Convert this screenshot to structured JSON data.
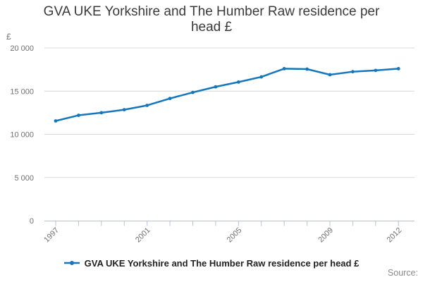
{
  "header": {
    "title": "GVA UKE Yorkshire and The Humber Raw residence per head £"
  },
  "y_axis": {
    "unit": "£",
    "tick_labels": [
      "0",
      "5 000",
      "10 000",
      "15 000",
      "20 000"
    ]
  },
  "x_axis": {
    "tick_labels": [
      "1997",
      "2001",
      "2005",
      "2009",
      "2012"
    ]
  },
  "legend": {
    "label": "GVA UKE Yorkshire and The Humber Raw residence per head £"
  },
  "footer": {
    "source": "Source:"
  },
  "colors": {
    "line": "#1477bd",
    "grid": "#d9d9d9",
    "axis": "#b5c2d8",
    "tick_label": "#707070",
    "title": "#3a3a3a",
    "legend_text": "#222222",
    "source_text": "#8c8c8c"
  },
  "chart_data": {
    "type": "line",
    "title": "GVA UKE Yorkshire and The Humber Raw residence per head £",
    "xlabel": "",
    "ylabel": "£",
    "x": [
      1997,
      1998,
      1999,
      2000,
      2001,
      2002,
      2003,
      2004,
      2005,
      2006,
      2007,
      2008,
      2009,
      2010,
      2011,
      2012
    ],
    "series": [
      {
        "name": "GVA UKE Yorkshire and The Humber Raw residence per head £",
        "values": [
          11550,
          12200,
          12500,
          12850,
          13350,
          14150,
          14850,
          15500,
          16050,
          16650,
          17600,
          17550,
          16900,
          17250,
          17400,
          17600
        ]
      }
    ],
    "ylim": [
      0,
      20000
    ],
    "yticks": [
      0,
      5000,
      10000,
      15000,
      20000
    ],
    "ytick_labels": [
      "0",
      "5 000",
      "10 000",
      "15 000",
      "20 000"
    ],
    "labeled_x_ticks": [
      1997,
      2001,
      2005,
      2009,
      2012
    ],
    "grid": true,
    "legend_position": "bottom"
  }
}
